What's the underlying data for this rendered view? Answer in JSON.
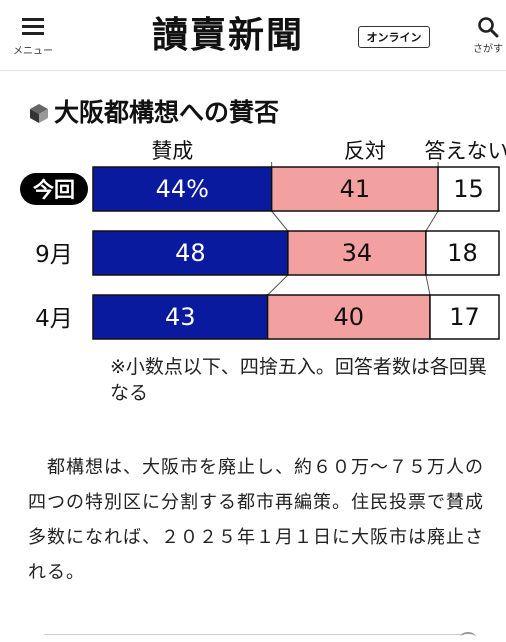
{
  "header": {
    "menu_label": "メニュー",
    "logo_text": "讀賣新聞",
    "badge_text": "オンライン",
    "search_label": "さがす"
  },
  "colors": {
    "support": "#0a1a9e",
    "oppose": "#f3a0a0",
    "undecided": "#ffffff",
    "border": "#111111"
  },
  "chart_data": {
    "type": "bar",
    "orientation": "horizontal-stacked-100",
    "title": "大阪都構想への賛否",
    "legend": [
      "賛成",
      "反対",
      "答えない"
    ],
    "categories": [
      "今回",
      "9月",
      "4月"
    ],
    "series": [
      {
        "name": "賛成",
        "values": [
          44,
          48,
          43
        ],
        "labels": [
          "44%",
          "48",
          "43"
        ]
      },
      {
        "name": "反対",
        "values": [
          41,
          34,
          40
        ],
        "labels": [
          "41",
          "34",
          "40"
        ]
      },
      {
        "name": "答えない",
        "values": [
          15,
          18,
          17
        ],
        "labels": [
          "15",
          "18",
          "17"
        ]
      }
    ],
    "highlight_category": "今回"
  },
  "chart_note": "※小数点以下、四捨五入。回答者数は各回異なる",
  "article_text": "　都構想は、大阪市を廃止し、約６０万～７５万人の四つの特別区に分割する都市再編策。住民投票で賛成多数になれば、２０２５年１月１日に大阪市は廃止される。"
}
